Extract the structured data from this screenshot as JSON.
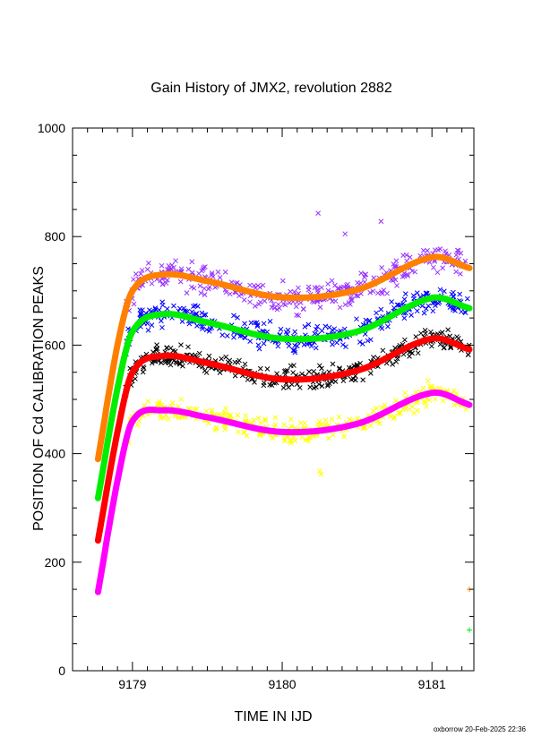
{
  "chart_data": {
    "type": "scatter",
    "title": "Gain History of JMX2, revolution 2882",
    "xlabel": "TIME IN IJD",
    "ylabel": "POSITION OF Cd CALIBRATION PEAKS",
    "xlim": [
      9178.6,
      9181.28
    ],
    "ylim": [
      0,
      1000
    ],
    "xticks": [
      9179,
      9180,
      9181
    ],
    "xtick_labels": [
      "9179",
      "9180",
      "9181"
    ],
    "yticks": [
      0,
      200,
      400,
      600,
      800,
      1000
    ],
    "ytick_labels": [
      "0",
      "200",
      "400",
      "600",
      "800",
      "1000"
    ],
    "grid": false,
    "legend": "none",
    "footer": "oxborrow 20-Feb-2025 22:36",
    "series": [
      {
        "color": "#9933ff",
        "marker": "x",
        "spread": 38,
        "curve": [
          [
            9178.77,
            390
          ],
          [
            9178.9,
            600
          ],
          [
            9179.0,
            700
          ],
          [
            9179.2,
            730
          ],
          [
            9179.5,
            718
          ],
          [
            9180.0,
            688
          ],
          [
            9180.5,
            702
          ],
          [
            9181.0,
            762
          ],
          [
            9181.25,
            742
          ]
        ]
      },
      {
        "color": "#ff8000",
        "marker": "line",
        "spread": 0,
        "curve": [
          [
            9178.77,
            390
          ],
          [
            9178.9,
            600
          ],
          [
            9179.0,
            700
          ],
          [
            9179.2,
            730
          ],
          [
            9179.5,
            718
          ],
          [
            9180.0,
            688
          ],
          [
            9180.5,
            702
          ],
          [
            9181.0,
            762
          ],
          [
            9181.25,
            742
          ]
        ]
      },
      {
        "color": "#0000ff",
        "marker": "x",
        "spread": 34,
        "curve": [
          [
            9178.77,
            318
          ],
          [
            9178.9,
            520
          ],
          [
            9179.0,
            625
          ],
          [
            9179.2,
            657
          ],
          [
            9179.5,
            642
          ],
          [
            9180.0,
            612
          ],
          [
            9180.5,
            625
          ],
          [
            9181.0,
            687
          ],
          [
            9181.25,
            668
          ]
        ]
      },
      {
        "color": "#00ee00",
        "marker": "line",
        "spread": 0,
        "curve": [
          [
            9178.77,
            318
          ],
          [
            9178.9,
            520
          ],
          [
            9179.0,
            625
          ],
          [
            9179.2,
            657
          ],
          [
            9179.5,
            642
          ],
          [
            9180.0,
            612
          ],
          [
            9180.5,
            625
          ],
          [
            9181.0,
            687
          ],
          [
            9181.25,
            668
          ]
        ]
      },
      {
        "color": "#000000",
        "marker": "x",
        "spread": 30,
        "curve": [
          [
            9178.77,
            240
          ],
          [
            9178.9,
            440
          ],
          [
            9179.0,
            550
          ],
          [
            9179.2,
            580
          ],
          [
            9179.5,
            567
          ],
          [
            9180.0,
            537
          ],
          [
            9180.5,
            553
          ],
          [
            9181.0,
            612
          ],
          [
            9181.25,
            592
          ]
        ]
      },
      {
        "color": "#ff0000",
        "marker": "line",
        "spread": 0,
        "curve": [
          [
            9178.77,
            240
          ],
          [
            9178.9,
            440
          ],
          [
            9179.0,
            550
          ],
          [
            9179.2,
            580
          ],
          [
            9179.5,
            567
          ],
          [
            9180.0,
            537
          ],
          [
            9180.5,
            553
          ],
          [
            9181.0,
            612
          ],
          [
            9181.25,
            592
          ]
        ]
      },
      {
        "color": "#ffff00",
        "marker": "x",
        "spread": 32,
        "curve": [
          [
            9178.77,
            145
          ],
          [
            9178.9,
            350
          ],
          [
            9179.0,
            460
          ],
          [
            9179.2,
            480
          ],
          [
            9179.5,
            467
          ],
          [
            9180.0,
            440
          ],
          [
            9180.5,
            455
          ],
          [
            9181.0,
            512
          ],
          [
            9181.25,
            490
          ]
        ]
      },
      {
        "color": "#ff00ff",
        "marker": "line",
        "spread": 0,
        "curve": [
          [
            9178.77,
            145
          ],
          [
            9178.9,
            350
          ],
          [
            9179.0,
            460
          ],
          [
            9179.2,
            480
          ],
          [
            9179.5,
            467
          ],
          [
            9180.0,
            440
          ],
          [
            9180.5,
            455
          ],
          [
            9181.0,
            512
          ],
          [
            9181.25,
            490
          ]
        ]
      }
    ],
    "outliers": [
      {
        "x": 9180.24,
        "y": 843,
        "color": "#9933ff"
      },
      {
        "x": 9180.66,
        "y": 828,
        "color": "#9933ff"
      },
      {
        "x": 9180.42,
        "y": 805,
        "color": "#9933ff"
      },
      {
        "x": 9180.25,
        "y": 368,
        "color": "#ffff00"
      },
      {
        "x": 9180.26,
        "y": 362,
        "color": "#ffff00"
      }
    ],
    "edge_markers": [
      {
        "x": 9181.25,
        "y": 150,
        "color": "#ff8000",
        "marker": "+"
      },
      {
        "x": 9181.25,
        "y": 75,
        "color": "#00ee00",
        "marker": "+"
      }
    ]
  }
}
